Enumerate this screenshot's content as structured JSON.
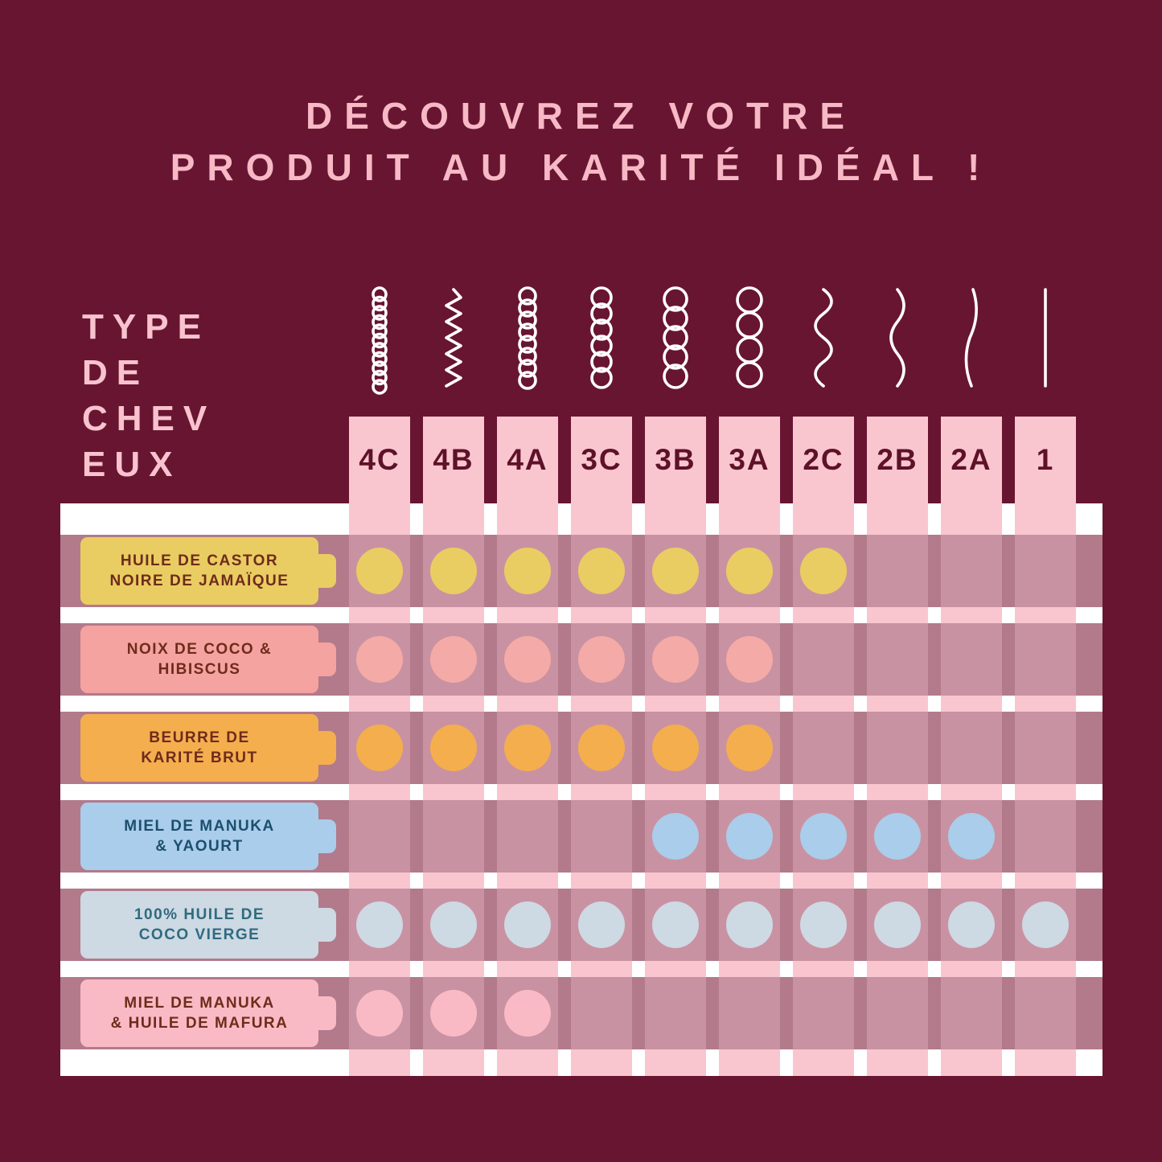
{
  "title": {
    "line1": "DÉCOUVREZ VOTRE",
    "line2": "PRODUIT AU KARITÉ IDÉAL !"
  },
  "axis_label": {
    "lines": [
      "TYPE",
      "DE",
      "CHEV",
      "EUX"
    ]
  },
  "colors": {
    "background": "#681532",
    "title_pink": "#f7b9c5",
    "header_pink": "#f9c6d0",
    "header_text": "#5e1128",
    "row_band": "#b27a8b",
    "panel": "#ffffff",
    "hair_icon": "#ffffff"
  },
  "columns": [
    {
      "label": "4C",
      "icon": "tight-coil-icon"
    },
    {
      "label": "4B",
      "icon": "zigzag-coil-icon"
    },
    {
      "label": "4A",
      "icon": "small-loops-icon"
    },
    {
      "label": "3C",
      "icon": "medium-loops-icon"
    },
    {
      "label": "3B",
      "icon": "loose-loops-icon"
    },
    {
      "label": "3A",
      "icon": "large-loops-icon"
    },
    {
      "label": "2C",
      "icon": "s-wave-icon"
    },
    {
      "label": "2B",
      "icon": "wave-icon"
    },
    {
      "label": "2A",
      "icon": "loose-wave-icon"
    },
    {
      "label": "1",
      "icon": "straight-hair-icon"
    }
  ],
  "products": [
    {
      "name_lines": [
        "HUILE DE CASTOR",
        "NOIRE DE JAMAÏQUE"
      ],
      "label_bg": "#e9cd62",
      "label_text_color": "#6f2b1b",
      "dot_color": "#e9cd62",
      "dots": [
        "4C",
        "4B",
        "4A",
        "3C",
        "3B",
        "3A",
        "2C"
      ]
    },
    {
      "name_lines": [
        "NOIX DE COCO &",
        "HIBISCUS"
      ],
      "label_bg": "#f4a3a0",
      "label_text_color": "#6f2b1b",
      "dot_color": "#f4aaa6",
      "dots": [
        "4C",
        "4B",
        "4A",
        "3C",
        "3B",
        "3A"
      ]
    },
    {
      "name_lines": [
        "BEURRE DE",
        "KARITÉ BRUT"
      ],
      "label_bg": "#f4ae4e",
      "label_text_color": "#6f2b1b",
      "dot_color": "#f4ae4e",
      "dots": [
        "4C",
        "4B",
        "4A",
        "3C",
        "3B",
        "3A"
      ]
    },
    {
      "name_lines": [
        "MIEL DE MANUKA",
        "& YAOURT"
      ],
      "label_bg": "#a9cdea",
      "label_text_color": "#1c4f6e",
      "dot_color": "#a9cdea",
      "dots": [
        "3B",
        "3A",
        "2C",
        "2B",
        "2A"
      ]
    },
    {
      "name_lines": [
        "100% HUILE DE",
        "COCO VIERGE"
      ],
      "label_bg": "#cdd9e3",
      "label_text_color": "#2f6b80",
      "dot_color": "#cdd9e3",
      "dots": [
        "4C",
        "4B",
        "4A",
        "3C",
        "3B",
        "3A",
        "2C",
        "2B",
        "2A",
        "1"
      ]
    },
    {
      "name_lines": [
        "MIEL DE MANUKA",
        "& HUILE DE MAFURA"
      ],
      "label_bg": "#f9bac5",
      "label_text_color": "#6f2b1b",
      "dot_color": "#f9bac5",
      "dots": [
        "4C",
        "4B",
        "4A"
      ]
    }
  ],
  "chart_data": {
    "type": "heatmap",
    "title": "DÉCOUVREZ VOTRE PRODUIT AU KARITÉ IDÉAL !",
    "xlabel": "TYPE DE CHEVEUX",
    "categories": [
      "4C",
      "4B",
      "4A",
      "3C",
      "3B",
      "3A",
      "2C",
      "2B",
      "2A",
      "1"
    ],
    "series": [
      {
        "name": "HUILE DE CASTOR NOIRE DE JAMAÏQUE",
        "values": [
          1,
          1,
          1,
          1,
          1,
          1,
          1,
          0,
          0,
          0
        ]
      },
      {
        "name": "NOIX DE COCO & HIBISCUS",
        "values": [
          1,
          1,
          1,
          1,
          1,
          1,
          0,
          0,
          0,
          0
        ]
      },
      {
        "name": "BEURRE DE KARITÉ BRUT",
        "values": [
          1,
          1,
          1,
          1,
          1,
          1,
          0,
          0,
          0,
          0
        ]
      },
      {
        "name": "MIEL DE MANUKA & YAOURT",
        "values": [
          0,
          0,
          0,
          0,
          1,
          1,
          1,
          1,
          1,
          0
        ]
      },
      {
        "name": "100% HUILE DE COCO VIERGE",
        "values": [
          1,
          1,
          1,
          1,
          1,
          1,
          1,
          1,
          1,
          1
        ]
      },
      {
        "name": "MIEL DE MANUKA & HUILE DE MAFURA",
        "values": [
          1,
          1,
          1,
          0,
          0,
          0,
          0,
          0,
          0,
          0
        ]
      }
    ],
    "legend_position": "left",
    "grid": true
  }
}
